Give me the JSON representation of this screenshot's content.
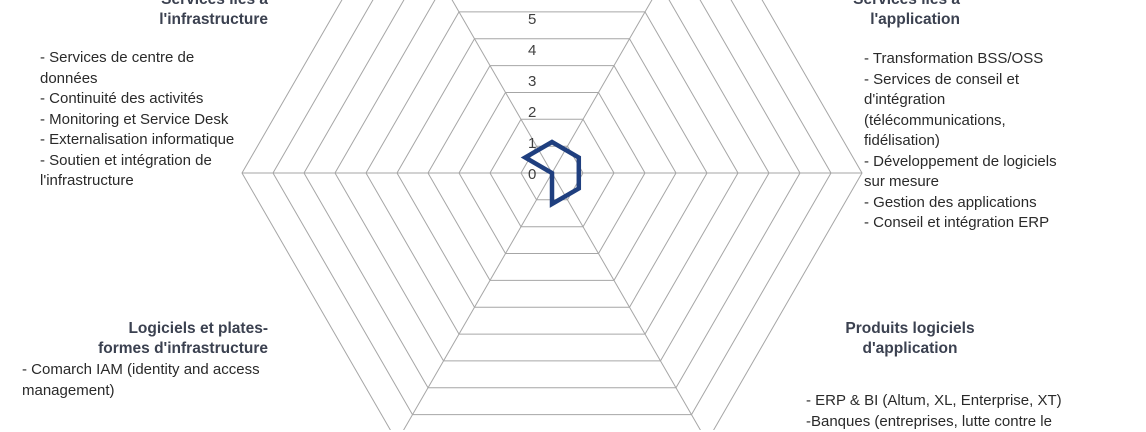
{
  "chart_data": {
    "type": "radar",
    "axes": [
      {
        "title_lines": [
          "Services liés à",
          "l'application"
        ],
        "value": 1,
        "items": [
          "- Transformation  BSS/OSS",
          "- Services  de conseil et",
          "d'intégration",
          "(télécommunications,",
          "fidélisation)",
          "- Développement  de logiciels",
          "sur mesure",
          "- Gestion des applications",
          "- Conseil et intégration ERP"
        ]
      },
      {
        "title_lines": [
          "Produits logiciels",
          "d'application"
        ],
        "value": 1,
        "items": [
          "- ERP & BI (Altum, XL,  Enterprise, XT)",
          "-Banques  (entreprises,  lutte contre le"
        ]
      },
      {
        "title_lines": [
          "",
          ""
        ],
        "value": 1,
        "items": []
      },
      {
        "title_lines": [
          "Logiciels et plates-",
          "formes d'infrastructure"
        ],
        "value": 0,
        "items": [
          "- Comarch IAM (identity and access",
          "management)"
        ]
      },
      {
        "title_lines": [
          "Services liés à",
          "l'infrastructure"
        ],
        "value": 1,
        "items": [
          "-  Services  de centre de",
          "données",
          "- Continuité des activités",
          "- Monitoring  et Service Desk",
          "- Externalisation informatique",
          "- Soutien et intégration de",
          "l'infrastructure"
        ]
      },
      {
        "title_lines": [
          "",
          ""
        ],
        "value": 1,
        "items": []
      }
    ],
    "rlim": [
      0,
      5
    ],
    "ticks": [
      "0",
      "1",
      "2",
      "3",
      "4",
      "5"
    ],
    "grid": true,
    "series": [
      {
        "color": "#1f3f7f"
      }
    ],
    "grid_color": "#a6a6a6"
  }
}
